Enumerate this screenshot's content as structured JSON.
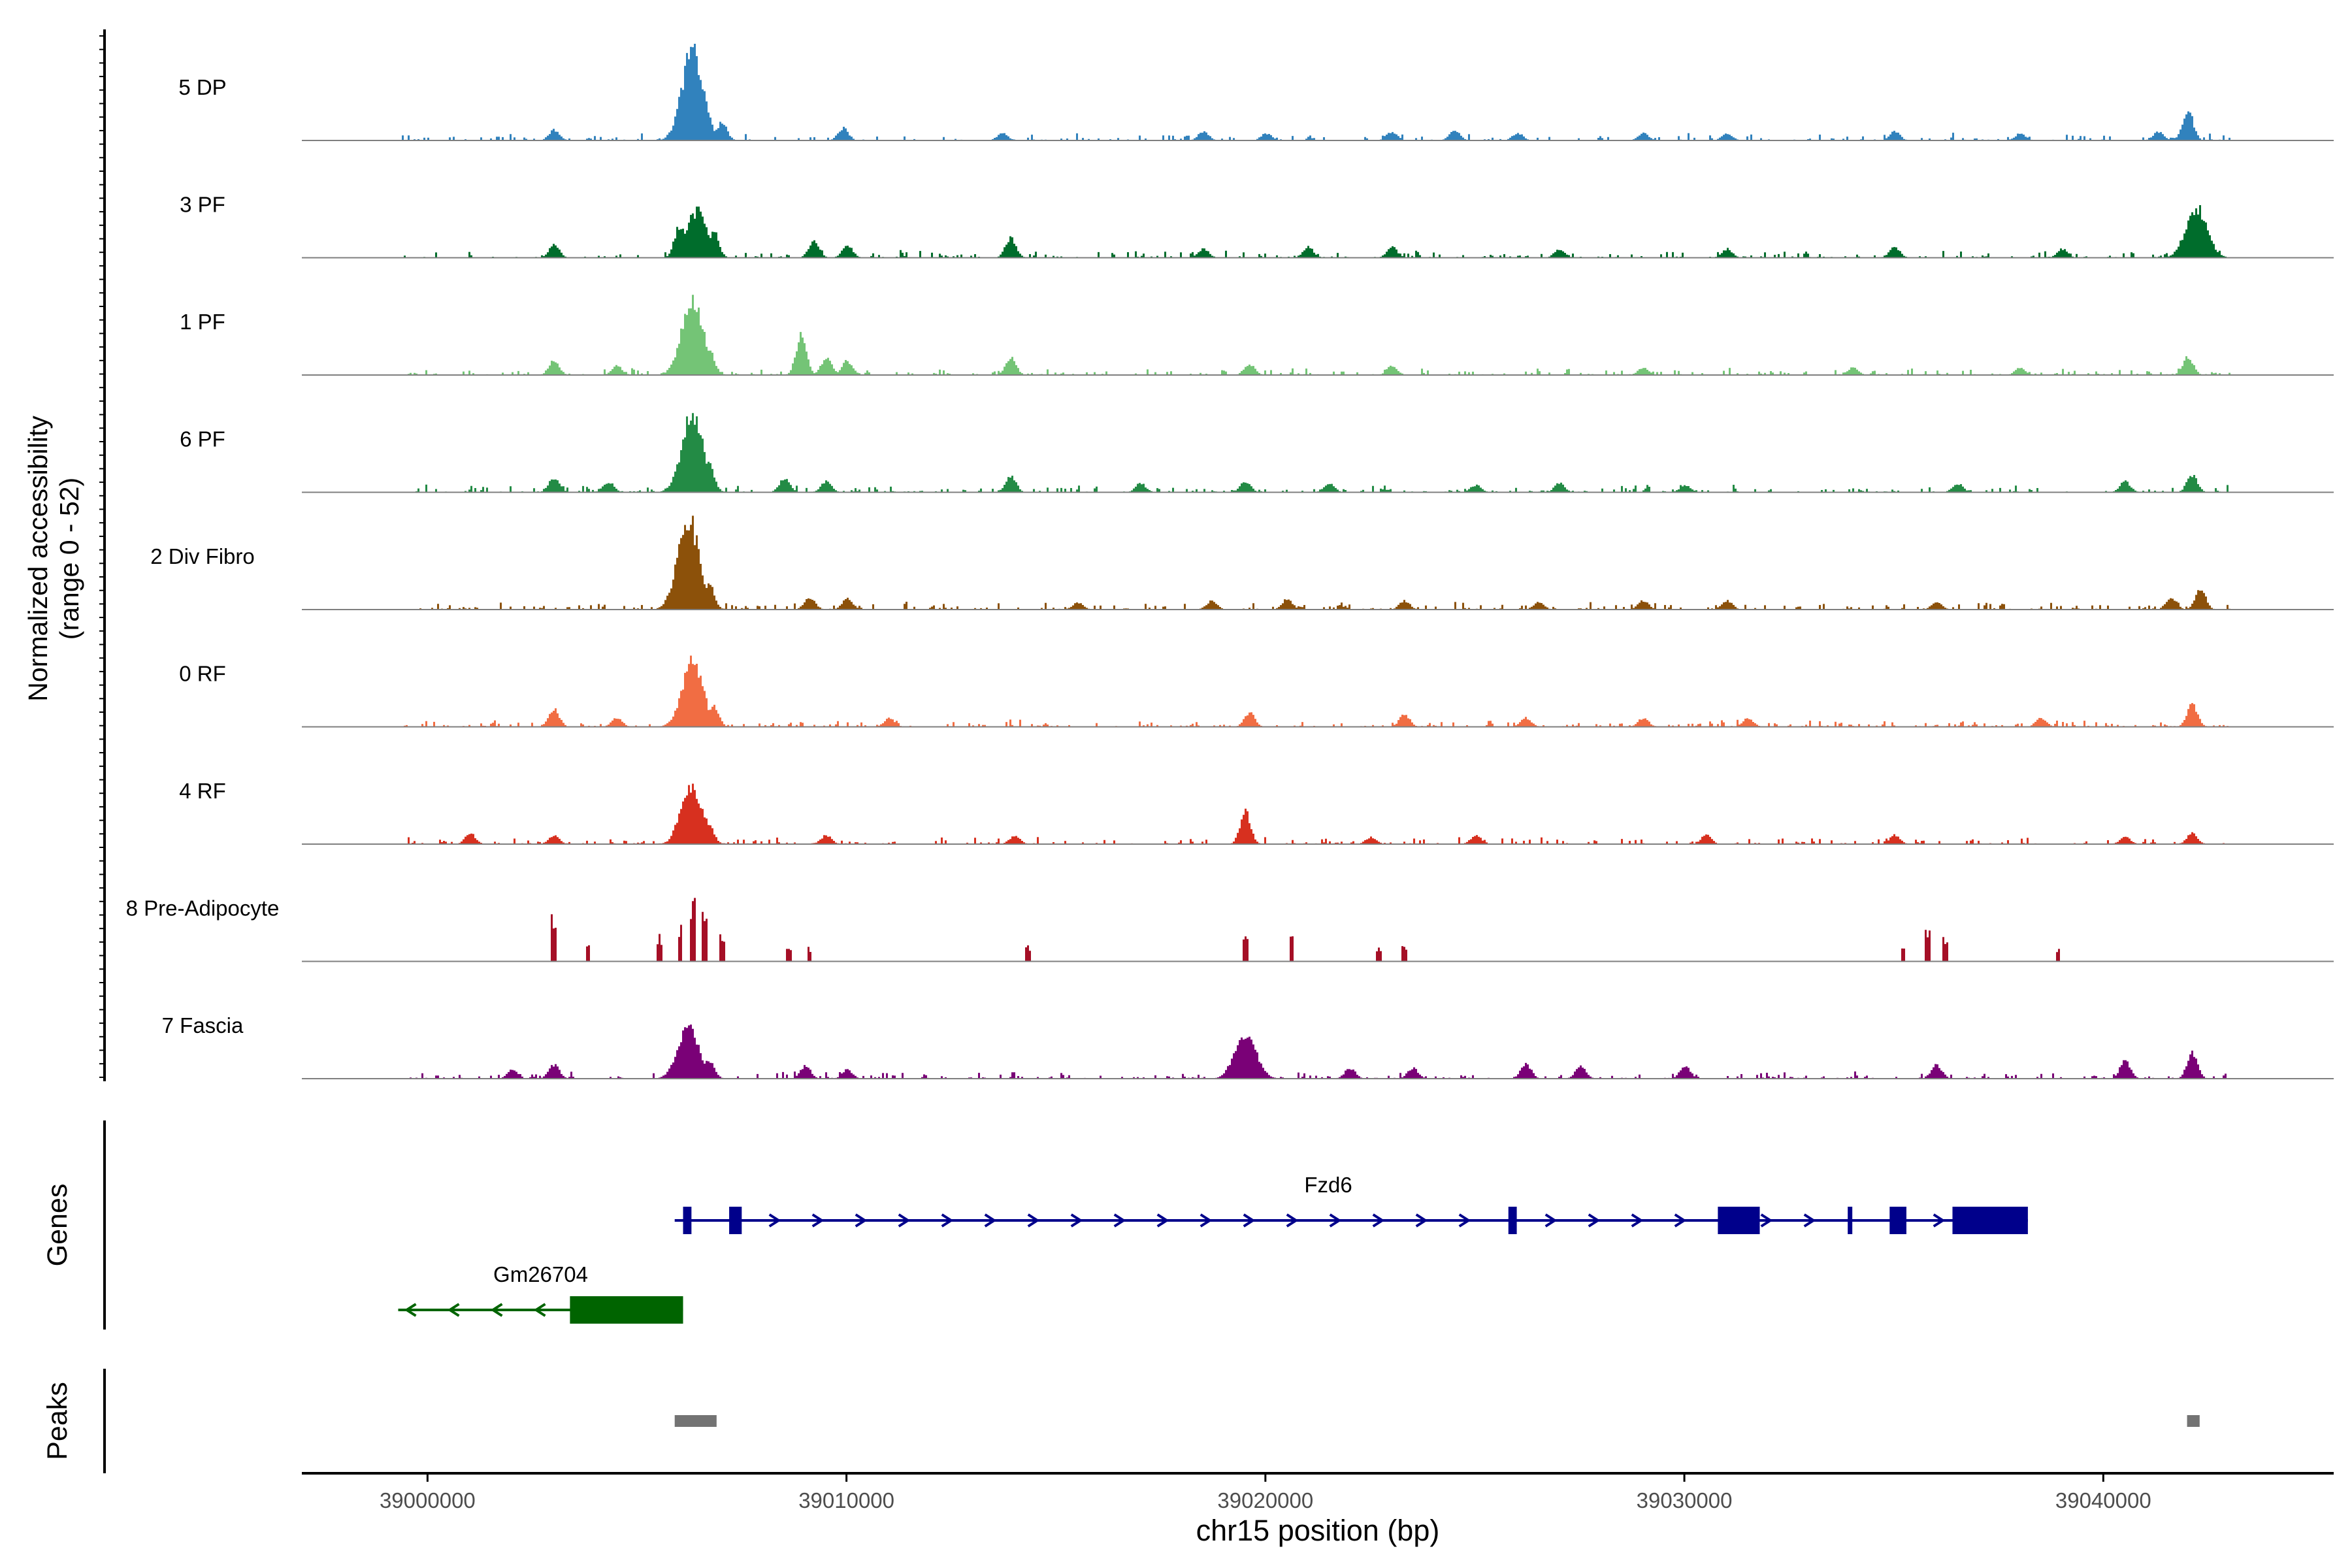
{
  "chart_data": {
    "type": "area",
    "title": "",
    "region": {
      "chrom": "chr15",
      "start": 38997000,
      "end": 39045500
    },
    "xlabel": "chr15 position (bp)",
    "x_ticks": [
      39000000,
      39010000,
      39020000,
      39030000,
      39040000
    ],
    "x_tick_labels": [
      "39000000",
      "39010000",
      "39020000",
      "39030000",
      "39040000"
    ],
    "coverage_ylabel": "Normalized accessibility",
    "coverage_range_label": "(range 0 - 52)",
    "ylim": [
      0,
      52
    ],
    "tracks": [
      {
        "name": "5 DP",
        "color": "#3182bd",
        "peaks": [
          [
            39003000,
            6
          ],
          [
            39006300,
            50
          ],
          [
            39006600,
            22
          ],
          [
            39007000,
            10
          ],
          [
            39009900,
            7
          ],
          [
            39013700,
            4
          ],
          [
            39018500,
            5
          ],
          [
            39020000,
            4
          ],
          [
            39023000,
            5
          ],
          [
            39024500,
            6
          ],
          [
            39026000,
            4
          ],
          [
            39029000,
            4
          ],
          [
            39031000,
            4
          ],
          [
            39035000,
            5
          ],
          [
            39038000,
            4
          ],
          [
            39041300,
            5
          ],
          [
            39042000,
            17
          ]
        ]
      },
      {
        "name": "3 PF",
        "color": "#006d2c",
        "peaks": [
          [
            39003000,
            7
          ],
          [
            39006000,
            18
          ],
          [
            39006400,
            26
          ],
          [
            39006800,
            15
          ],
          [
            39009200,
            9
          ],
          [
            39010000,
            7
          ],
          [
            39013900,
            11
          ],
          [
            39018500,
            5
          ],
          [
            39021000,
            6
          ],
          [
            39023000,
            6
          ],
          [
            39027000,
            5
          ],
          [
            39031000,
            5
          ],
          [
            39035000,
            6
          ],
          [
            39039000,
            5
          ],
          [
            39042200,
            28
          ]
        ]
      },
      {
        "name": "1 PF",
        "color": "#74c476",
        "peaks": [
          [
            39003000,
            8
          ],
          [
            39004500,
            5
          ],
          [
            39006300,
            44
          ],
          [
            39006700,
            15
          ],
          [
            39008900,
            22
          ],
          [
            39009500,
            10
          ],
          [
            39010000,
            8
          ],
          [
            39013900,
            10
          ],
          [
            39019600,
            6
          ],
          [
            39023000,
            5
          ],
          [
            39029000,
            4
          ],
          [
            39034000,
            4
          ],
          [
            39038000,
            4
          ],
          [
            39042000,
            10
          ]
        ]
      },
      {
        "name": "6 PF",
        "color": "#238b45",
        "peaks": [
          [
            39003000,
            8
          ],
          [
            39004300,
            6
          ],
          [
            39006300,
            44
          ],
          [
            39006700,
            16
          ],
          [
            39008500,
            8
          ],
          [
            39009500,
            6
          ],
          [
            39013900,
            9
          ],
          [
            39017000,
            5
          ],
          [
            39019500,
            6
          ],
          [
            39021500,
            5
          ],
          [
            39025000,
            4
          ],
          [
            39027000,
            5
          ],
          [
            39030000,
            4
          ],
          [
            39036500,
            5
          ],
          [
            39040500,
            6
          ],
          [
            39042100,
            10
          ]
        ]
      },
      {
        "name": "2 Div Fibro",
        "color": "#8c510a",
        "peaks": [
          [
            39006200,
            52
          ],
          [
            39006700,
            14
          ],
          [
            39009100,
            7
          ],
          [
            39010000,
            6
          ],
          [
            39015500,
            4
          ],
          [
            39018700,
            5
          ],
          [
            39020500,
            6
          ],
          [
            39023300,
            5
          ],
          [
            39026500,
            4
          ],
          [
            39029000,
            5
          ],
          [
            39031000,
            5
          ],
          [
            39036000,
            4
          ],
          [
            39041600,
            7
          ],
          [
            39042300,
            11
          ]
        ]
      },
      {
        "name": "0 RF",
        "color": "#f16d43",
        "peaks": [
          [
            39003000,
            10
          ],
          [
            39004500,
            5
          ],
          [
            39006300,
            36
          ],
          [
            39006800,
            12
          ],
          [
            39011000,
            5
          ],
          [
            39019600,
            8
          ],
          [
            39023300,
            7
          ],
          [
            39026200,
            5
          ],
          [
            39029000,
            5
          ],
          [
            39031500,
            5
          ],
          [
            39038500,
            5
          ],
          [
            39042100,
            13
          ]
        ]
      },
      {
        "name": "4 RF",
        "color": "#d7301f",
        "peaks": [
          [
            39001000,
            6
          ],
          [
            39003000,
            5
          ],
          [
            39006000,
            16
          ],
          [
            39006300,
            32
          ],
          [
            39006700,
            10
          ],
          [
            39009500,
            5
          ],
          [
            39014000,
            5
          ],
          [
            39019500,
            18
          ],
          [
            39022500,
            4
          ],
          [
            39025000,
            5
          ],
          [
            39030500,
            5
          ],
          [
            39035000,
            5
          ],
          [
            39040500,
            4
          ],
          [
            39042100,
            6
          ]
        ]
      },
      {
        "name": "8 Pre-Adipocyte",
        "color": "#a50f26",
        "peaks": [
          [
            39003000,
            24
          ],
          [
            39003800,
            10
          ],
          [
            39005500,
            14
          ],
          [
            39006000,
            22
          ],
          [
            39006300,
            32
          ],
          [
            39006600,
            28
          ],
          [
            39007000,
            14
          ],
          [
            39008600,
            8
          ],
          [
            39009100,
            8
          ],
          [
            39014300,
            8
          ],
          [
            39019500,
            14
          ],
          [
            39020600,
            16
          ],
          [
            39022700,
            8
          ],
          [
            39023300,
            8
          ],
          [
            39035200,
            10
          ],
          [
            39035800,
            16
          ],
          [
            39036200,
            14
          ],
          [
            39038900,
            7
          ]
        ]
      },
      {
        "name": "7 Fascia",
        "color": "#7a0177",
        "peaks": [
          [
            39002000,
            5
          ],
          [
            39003000,
            8
          ],
          [
            39006200,
            28
          ],
          [
            39006700,
            10
          ],
          [
            39009000,
            7
          ],
          [
            39010000,
            5
          ],
          [
            39019500,
            26
          ],
          [
            39022000,
            6
          ],
          [
            39023500,
            6
          ],
          [
            39026200,
            8
          ],
          [
            39027500,
            7
          ],
          [
            39030000,
            7
          ],
          [
            39036000,
            8
          ],
          [
            39040500,
            10
          ],
          [
            39042100,
            14
          ]
        ]
      }
    ],
    "genes_label": "Genes",
    "genes": [
      {
        "name": "Fzd6",
        "strand": "+",
        "color": "#00008b",
        "start": 39005900,
        "end": 39038200,
        "exons": [
          [
            39006100,
            39006300
          ],
          [
            39007200,
            39007500
          ],
          [
            39025800,
            39026000
          ],
          [
            39030800,
            39031800
          ],
          [
            39033900,
            39034000
          ],
          [
            39034900,
            39035300
          ],
          [
            39036400,
            39038200
          ]
        ]
      },
      {
        "name": "Gm26704",
        "strand": "-",
        "color": "#006400",
        "start": 38999300,
        "end": 39006100,
        "exons": [
          [
            39003400,
            39006100
          ]
        ]
      }
    ],
    "peaks_label": "Peaks",
    "called_peaks": [
      [
        39005900,
        39006900
      ],
      [
        39042000,
        39042300
      ]
    ]
  }
}
